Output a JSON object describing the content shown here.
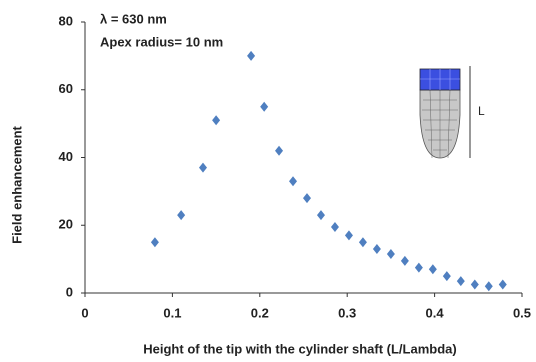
{
  "chart_data": {
    "type": "scatter",
    "x_label": "Height of the tip with the cylinder shaft  (L/Lambda)",
    "y_label": "Field enhancement",
    "annotations": [
      "λ = 630 nm",
      "Apex radius= 10 nm",
      "L"
    ],
    "color": "#4f7fc0",
    "x": [
      0.08,
      0.11,
      0.135,
      0.15,
      0.19,
      0.205,
      0.222,
      0.238,
      0.254,
      0.27,
      0.286,
      0.302,
      0.318,
      0.334,
      0.35,
      0.366,
      0.382,
      0.398,
      0.414,
      0.43,
      0.446,
      0.462,
      0.478
    ],
    "values": [
      15,
      23,
      37,
      51,
      70,
      55,
      42,
      33,
      28,
      23,
      19.5,
      17,
      15,
      13,
      11.5,
      9.5,
      7.5,
      7,
      5,
      3.5,
      2.5,
      2,
      2.5
    ],
    "xlim": [
      0,
      0.5
    ],
    "xticks": [
      0,
      0.1,
      0.2,
      0.3,
      0.4,
      0.5
    ],
    "ylim": [
      0,
      80
    ],
    "yticks": [
      0,
      20,
      40,
      60,
      80
    ],
    "grid": false
  }
}
